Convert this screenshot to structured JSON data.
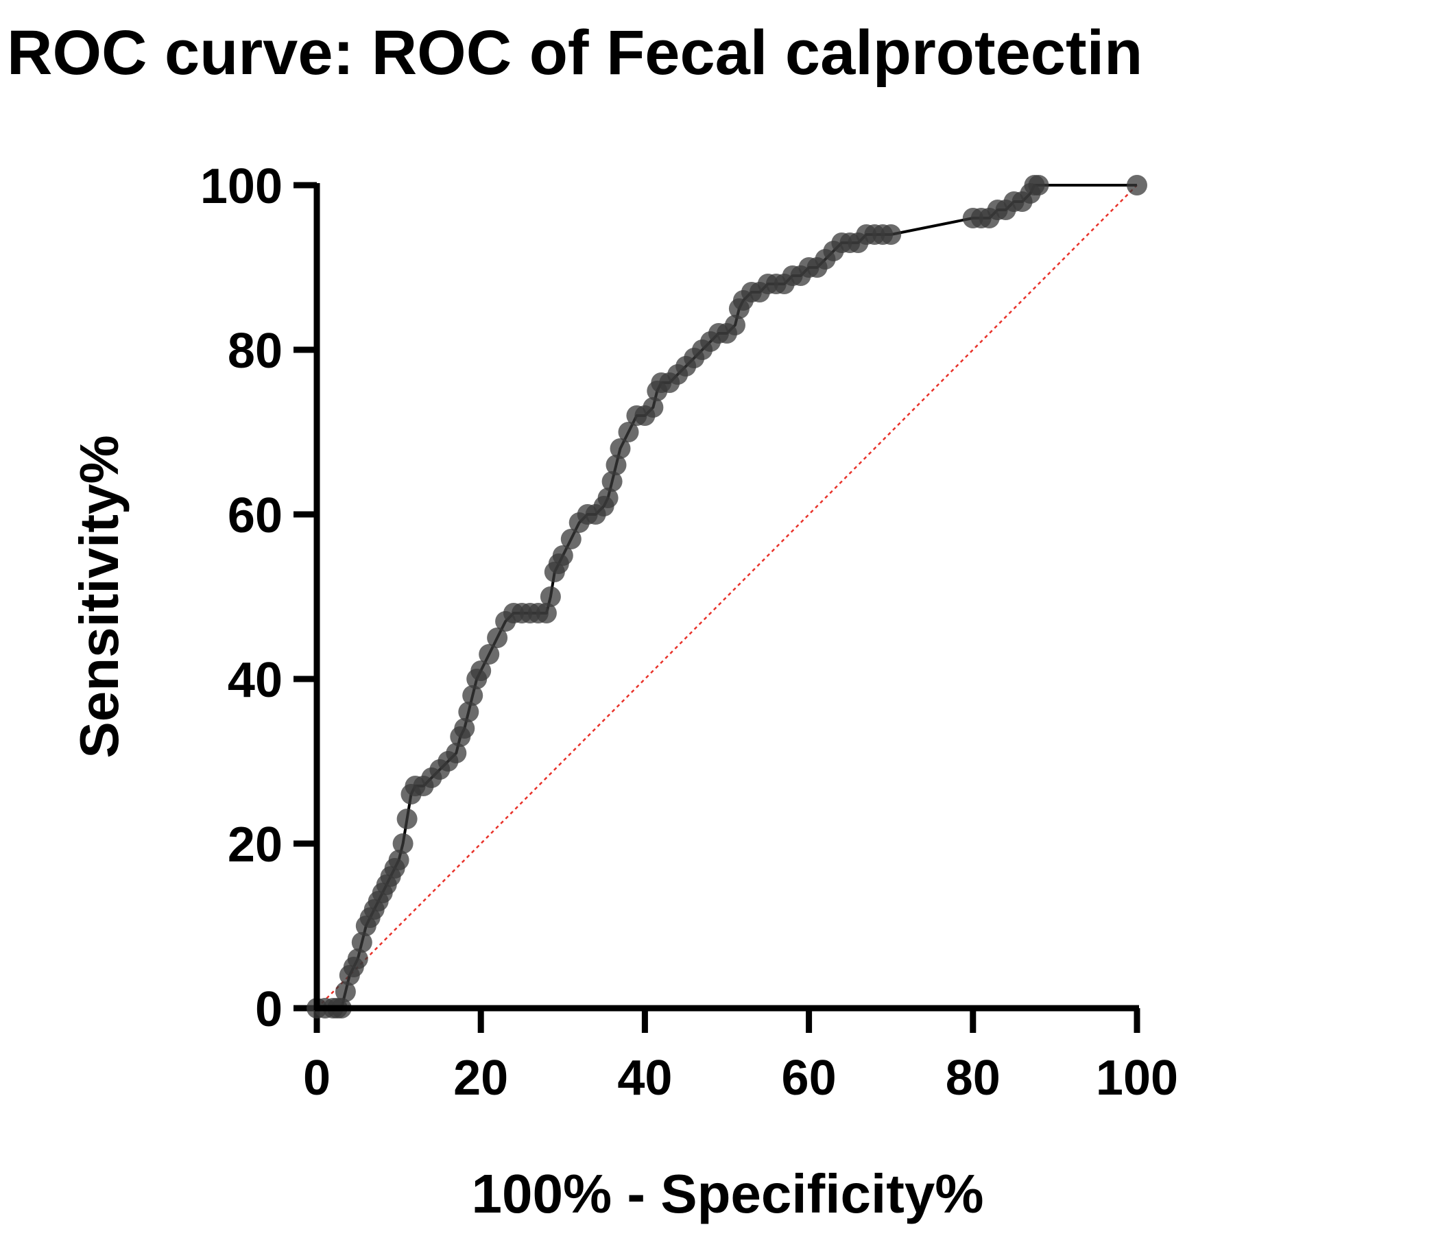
{
  "chart_data": {
    "type": "line",
    "title": "ROC curve: ROC of Fecal calprotectin",
    "xlabel": "100% - Specificity%",
    "ylabel": "Sensitivity%",
    "xlim": [
      0,
      100
    ],
    "ylim": [
      0,
      100
    ],
    "xticks": [
      "0",
      "20",
      "40",
      "60",
      "80",
      "100"
    ],
    "yticks": [
      "0",
      "20",
      "40",
      "60",
      "80",
      "100"
    ],
    "grid": false,
    "colors": {
      "curve": "#000000",
      "markers": "#3a3a3a",
      "reference": "#e8322a",
      "axes": "#000000"
    },
    "series": [
      {
        "name": "ROC of Fecal calprotectin",
        "marker": "circle",
        "x": [
          0,
          1,
          2,
          2.5,
          3,
          3.5,
          4,
          4.5,
          5,
          5.5,
          6,
          6.5,
          7,
          7.5,
          8,
          8.5,
          9,
          9.5,
          10,
          10.5,
          11,
          11.5,
          12,
          13,
          14,
          15,
          16,
          17,
          17.5,
          18,
          18.5,
          19,
          19.5,
          20,
          21,
          22,
          23,
          24,
          25,
          26,
          27,
          28,
          28.5,
          29,
          29.5,
          30,
          31,
          32,
          33,
          34,
          35,
          35.5,
          36,
          36.5,
          37,
          38,
          39,
          40,
          41,
          41.5,
          42,
          43,
          44,
          45,
          46,
          47,
          48,
          49,
          50,
          51,
          51.5,
          52,
          53,
          54,
          55,
          56,
          57,
          58,
          59,
          60,
          61,
          62,
          63,
          64,
          65,
          66,
          67,
          68,
          69,
          70,
          80,
          81,
          82,
          83,
          84,
          85,
          86,
          87,
          87.5,
          88,
          100
        ],
        "y": [
          0,
          0,
          0,
          0,
          0,
          2,
          4,
          5,
          6,
          8,
          10,
          11,
          12,
          13,
          14,
          15,
          16,
          17,
          18,
          20,
          23,
          26,
          27,
          27,
          28,
          29,
          30,
          31,
          33,
          34,
          36,
          38,
          40,
          41,
          43,
          45,
          47,
          48,
          48,
          48,
          48,
          48,
          50,
          53,
          54,
          55,
          57,
          59,
          60,
          60,
          61,
          62,
          64,
          66,
          68,
          70,
          72,
          72,
          73,
          75,
          76,
          76,
          77,
          78,
          79,
          80,
          81,
          82,
          82,
          83,
          85,
          86,
          87,
          87,
          88,
          88,
          88,
          89,
          89,
          90,
          90,
          91,
          92,
          93,
          93,
          93,
          94,
          94,
          94,
          94,
          96,
          96,
          96,
          97,
          97,
          98,
          98,
          99,
          100,
          100,
          100
        ]
      },
      {
        "name": "Reference line",
        "style": "dotted",
        "x": [
          0,
          100
        ],
        "y": [
          0,
          100
        ]
      }
    ]
  }
}
